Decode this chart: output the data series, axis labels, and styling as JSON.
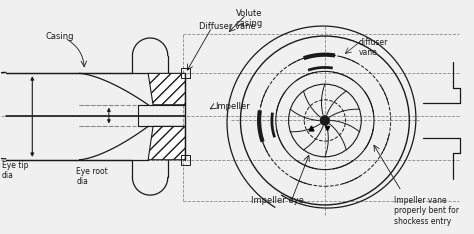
{
  "bg_color": "#f0f0f0",
  "line_color": "#1a1a1a",
  "dashed_color": "#888888",
  "labels": {
    "casing": "Casing",
    "volute": "Volute\ncasing",
    "diffuser_vane": "Diffuser vane",
    "impeller": "Impeller",
    "eye_tip": "Eye tip\ndia",
    "eye_root": "Eye root\ndia",
    "impeller_eye": "Impeller eye",
    "diffuser_vane2": "diffuser\nvane",
    "impeller_vane": "Impeller vane\nproperly bent for\nshockess entry"
  },
  "figsize": [
    4.74,
    2.34
  ],
  "dpi": 100
}
